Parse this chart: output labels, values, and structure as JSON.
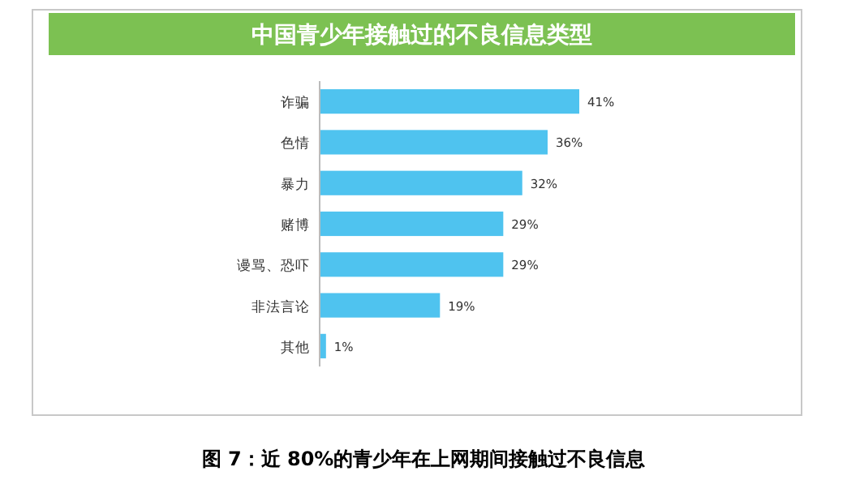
{
  "chart_data": {
    "type": "bar",
    "orientation": "horizontal",
    "title": "中国青少年接触过的不良信息类型",
    "categories": [
      "诈骗",
      "色情",
      "暴力",
      "赌博",
      "谩骂、恐吓",
      "非法言论",
      "其他"
    ],
    "values": [
      41,
      36,
      32,
      29,
      29,
      19,
      1
    ],
    "value_labels": [
      "41%",
      "36%",
      "32%",
      "29%",
      "29%",
      "19%",
      "1%"
    ],
    "color": "#4fc3ef",
    "annotations": [
      "图 7：近 80%的青少年在上网期间接触过不良信息"
    ]
  }
}
